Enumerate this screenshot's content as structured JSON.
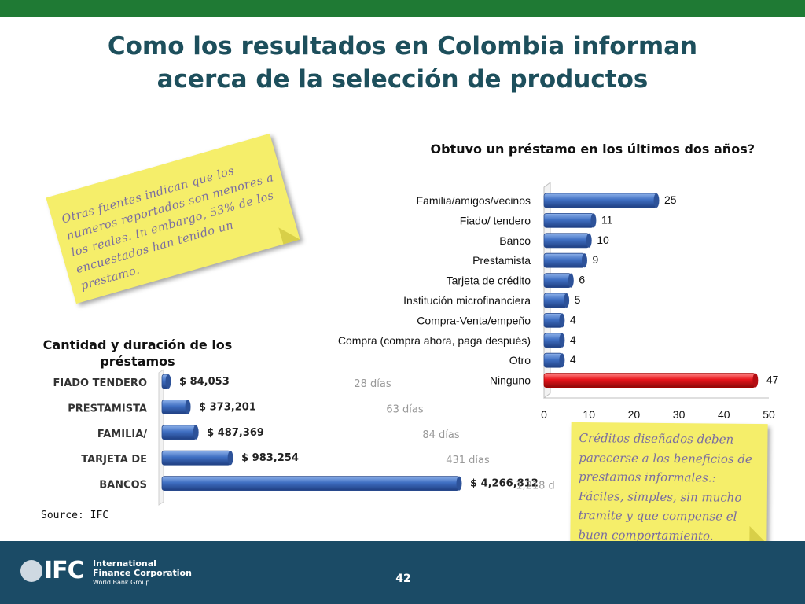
{
  "slide": {
    "title_line1": "Como los resultados en Colombia informan",
    "title_line2": "acerca de la selección de productos",
    "page_number": "42",
    "source": "Source: IFC",
    "logo": {
      "name": "IFC",
      "line1": "International",
      "line2": "Finance Corporation",
      "line3": "World Bank Group"
    },
    "note1": "Otras fuentes indican que los numeros reportados son menores a los reales. In embargo, 53% de los encuestados han tenido un prestamo.",
    "note2": "Créditos diseñados deben parecerse a los  beneficios de prestamos informales.: Fáciles, simples, sin mucho tramite y que compense el buen comportamiento.",
    "colors": {
      "header_green": "#1f7a34",
      "title_teal": "#1d4f5c",
      "footer_navy": "#1b4b66",
      "note_yellow": "#f5ee6a",
      "bar_blue": "#3f6fc2",
      "bar_red": "#e8141b"
    }
  },
  "chart_data": [
    {
      "type": "bar",
      "orientation": "horizontal",
      "title": "Obtuvo un préstamo en los últimos dos años?",
      "categories": [
        "Familia/amigos/vecinos",
        "Fiado/ tendero",
        "Banco",
        "Prestamista",
        "Tarjeta de crédito",
        "Institución microfinanciera",
        "Compra-Venta/empeño",
        "Compra  (compra ahora, paga después)",
        "Otro",
        "Ninguno"
      ],
      "values": [
        25,
        11,
        10,
        9,
        6,
        5,
        4,
        4,
        4,
        47
      ],
      "highlight_category": "Ninguno",
      "xlim": [
        0,
        50
      ],
      "xticks": [
        "0",
        "10",
        "20",
        "30",
        "40",
        "50"
      ],
      "grid": false,
      "legend": "none"
    },
    {
      "type": "bar",
      "orientation": "horizontal",
      "title": "Cantidad y duración de los préstamos",
      "categories": [
        "FIADO TENDERO",
        "PRESTAMISTA",
        "FAMILIA/",
        "TARJETA DE",
        "BANCOS"
      ],
      "values": [
        84053,
        373201,
        487369,
        983254,
        4266812
      ],
      "value_labels": [
        "$ 84,053",
        "$ 373,201",
        "$ 487,369",
        "$ 983,254",
        "$ 4,266,812"
      ],
      "durations": [
        "28 días",
        "63 días",
        "84 días",
        "431 días",
        "1,218 d"
      ],
      "grid": false,
      "legend": "none"
    }
  ]
}
